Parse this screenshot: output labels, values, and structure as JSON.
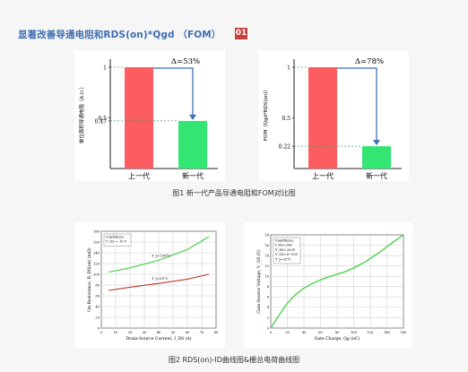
{
  "header": {
    "title": "显著改善导通电阻和RDS(on)*Qgd （FOM）",
    "badge": "01"
  },
  "captions": {
    "fig1": "图1 新一代产品导通电阻和FOM对比图",
    "fig2": "图2 RDS(on)-ID曲线图&栅总电荷曲线图"
  },
  "colors": {
    "prev_gen": "#fb5d60",
    "new_gen": "#33e673",
    "arrow": "#3f6fb3",
    "curve_red": "#c0392b",
    "curve_green": "#3fd13f"
  },
  "chart_data": [
    {
      "type": "bar",
      "categories": [
        "上一代",
        "新一代"
      ],
      "values": [
        1,
        0.47
      ],
      "ylabel": "单位面积导通电阻（A.U.）",
      "yticks": [
        "1",
        "0.5",
        "0.47"
      ],
      "ylim": [
        0,
        1.08
      ],
      "annotation": "Δ=53%"
    },
    {
      "type": "bar",
      "categories": [
        "上一代",
        "新一代"
      ],
      "values": [
        1,
        0.22
      ],
      "ylabel": "FOM（Qgd*RDS(on)）",
      "yticks": [
        "1",
        "0.5",
        "0.22"
      ],
      "ylim": [
        0,
        1.08
      ],
      "annotation": "Δ=78%"
    },
    {
      "type": "line",
      "xlabel": "Drain-Source Current, I_DS (A)",
      "ylabel": "On Resistance, R_DS(on) (mΩ)",
      "xticks": [
        "0",
        "10",
        "20",
        "30",
        "40",
        "50",
        "60",
        "70",
        "80"
      ],
      "yticks": [
        "0",
        "20",
        "40",
        "60",
        "80",
        "100",
        "120",
        "140",
        "160",
        "180"
      ],
      "xlim": [
        0,
        80
      ],
      "ylim": [
        0,
        180
      ],
      "conditions": [
        "Conditions:",
        "V_GS = 10 V"
      ],
      "series": [
        {
          "name": "T_J=150°C",
          "x": [
            5,
            20,
            40,
            60,
            75
          ],
          "y": [
            104,
            112,
            126,
            146,
            170
          ]
        },
        {
          "name": "T_J=25°C",
          "x": [
            5,
            20,
            40,
            60,
            75
          ],
          "y": [
            70,
            76,
            83,
            91,
            100
          ]
        }
      ]
    },
    {
      "type": "line",
      "xlabel": "Gate Charge, Qg (nC)",
      "ylabel": "Gate-Source Voltage, V_GS (V)",
      "xticks": [
        "0",
        "20",
        "40",
        "60",
        "80",
        "100",
        "120",
        "140",
        "160"
      ],
      "yticks": [
        "0",
        "2",
        "4",
        "6",
        "8",
        "10",
        "12",
        "14",
        "16",
        "18"
      ],
      "xlim": [
        0,
        160
      ],
      "ylim": [
        0,
        18
      ],
      "conditions": [
        "Conditions:",
        "I_DS=20A",
        "V_DS=320V",
        "V_GS=0~10V",
        "T_J=25°C"
      ],
      "series": [
        {
          "name": "",
          "x": [
            0,
            10,
            20,
            30,
            40,
            50,
            60,
            70,
            80,
            90,
            100,
            115,
            130,
            145,
            160
          ],
          "y": [
            0,
            2.5,
            4.8,
            6.5,
            7.7,
            8.6,
            9.3,
            9.9,
            10.4,
            10.9,
            11.6,
            12.9,
            14.5,
            16.3,
            18
          ]
        }
      ]
    }
  ]
}
